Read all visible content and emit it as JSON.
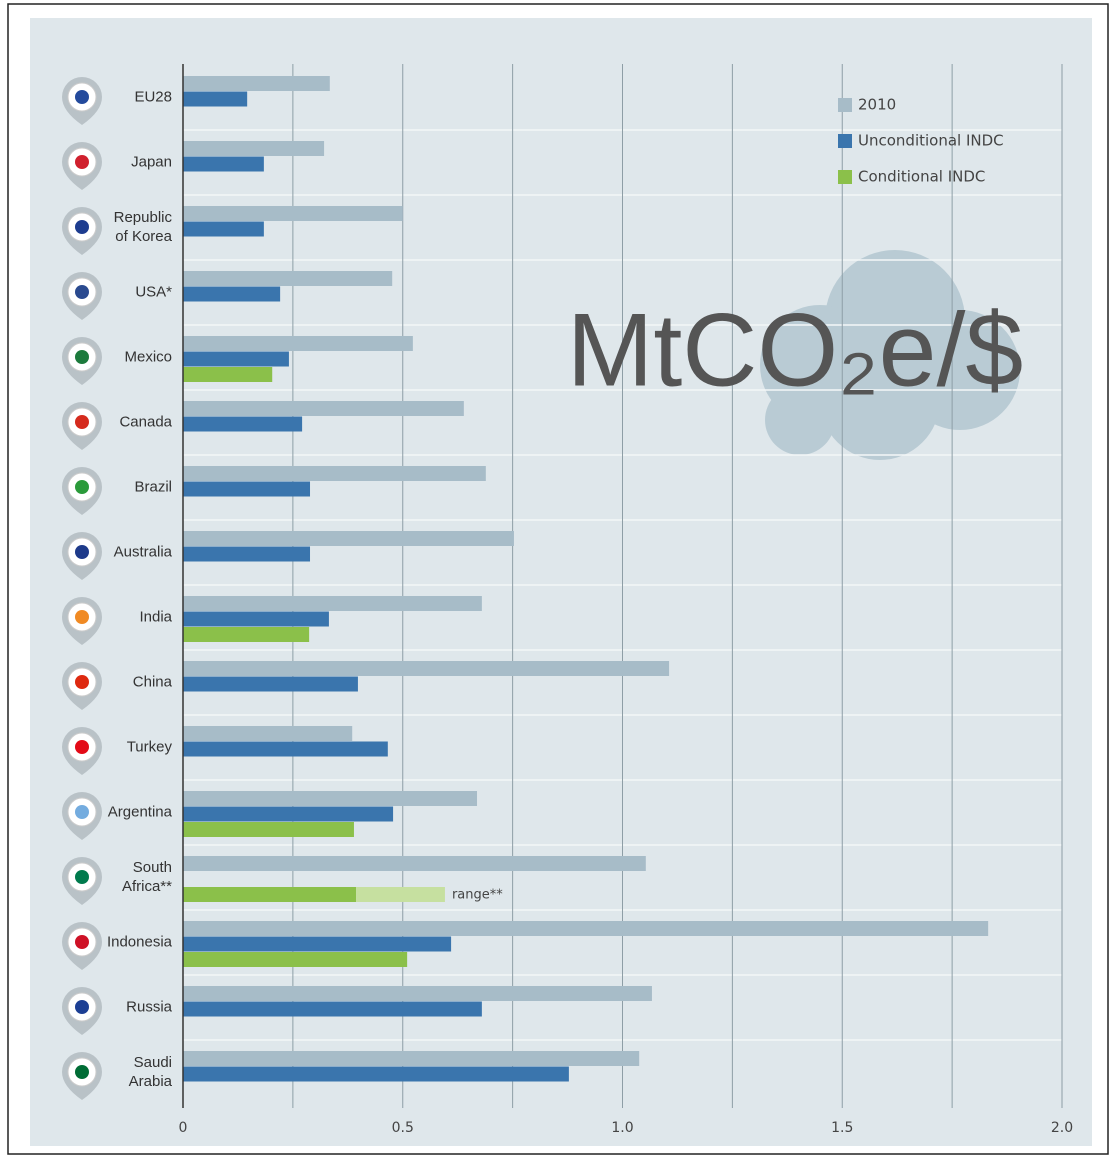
{
  "chart_data": {
    "type": "hbar",
    "title": "MtCO₂e/$",
    "categories": [
      "EU28",
      "Japan",
      "Republic of Korea",
      "USA*",
      "Mexico",
      "Canada",
      "Brazil",
      "Australia",
      "India",
      "China",
      "Turkey",
      "Argentina",
      "South Africa**",
      "Indonesia",
      "Russia",
      "Saudi Arabia"
    ],
    "series": [
      {
        "name": "2010",
        "color": "#a7bcc8",
        "values": [
          0.334,
          0.321,
          0.5,
          0.476,
          0.523,
          0.639,
          0.689,
          0.753,
          0.68,
          1.106,
          0.385,
          0.669,
          1.053,
          1.832,
          1.067,
          1.038
        ]
      },
      {
        "name": "Unconditional INDC",
        "color": "#3a75ad",
        "values": [
          0.146,
          0.184,
          0.184,
          0.221,
          0.241,
          0.271,
          0.289,
          0.289,
          0.332,
          0.398,
          0.466,
          0.478,
          null,
          0.61,
          0.68,
          0.878
        ]
      },
      {
        "name": "Conditional INDC",
        "color": "#8bc04a",
        "values": [
          null,
          null,
          null,
          null,
          0.203,
          null,
          null,
          null,
          0.287,
          null,
          null,
          0.389,
          0.394,
          0.51,
          null,
          null
        ]
      },
      {
        "name": "range**",
        "color": "#c6e0a0",
        "stacked": true,
        "in_legend": false,
        "values": [
          null,
          null,
          null,
          null,
          null,
          null,
          null,
          null,
          null,
          null,
          null,
          null,
          0.202,
          null,
          null,
          null
        ]
      }
    ],
    "xlim": [
      0,
      2
    ],
    "xticks": [
      0,
      0.5,
      {
        "value": 1,
        "label": "1.0"
      },
      1.5,
      {
        "value": 2,
        "label": "2.0"
      }
    ],
    "minor_xticks": [
      0.25,
      0.75,
      1.25,
      1.75
    ],
    "grid": true,
    "legend": "top-right"
  }
}
